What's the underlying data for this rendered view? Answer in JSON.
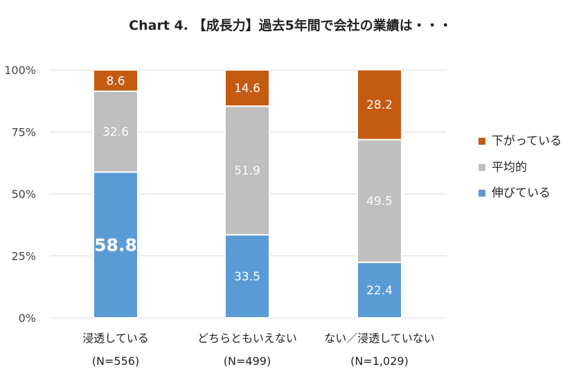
{
  "title": "Chart 4. 【成長力】過去5年間で会社の業績は・・・",
  "chart_data": {
    "type": "bar",
    "stacked": true,
    "title": "Chart 4. 【成長力】過去5年間で会社の業績は・・・",
    "categories": [
      "浸透している",
      "どちらともいえない",
      "ない／浸透していない"
    ],
    "sample_sizes": [
      "(N=556)",
      "(N=499)",
      "(N=1,029)"
    ],
    "series": [
      {
        "name": "伸びている",
        "values": [
          58.8,
          33.5,
          22.4
        ],
        "color": "#5b9bd5"
      },
      {
        "name": "平均的",
        "values": [
          32.6,
          51.9,
          49.5
        ],
        "color": "#bfbfbf"
      },
      {
        "name": "下がっている",
        "values": [
          8.6,
          14.6,
          28.2
        ],
        "color": "#c55a11"
      }
    ],
    "legend_order": [
      "下がっている",
      "平均的",
      "伸びている"
    ],
    "legend_position": "right",
    "y_ticks": [
      "0%",
      "25%",
      "50%",
      "75%",
      "100%"
    ],
    "ylim": [
      0,
      100
    ],
    "grid": true,
    "gridline_color": "#d9d9d9",
    "emphasized_label": "58.8"
  }
}
